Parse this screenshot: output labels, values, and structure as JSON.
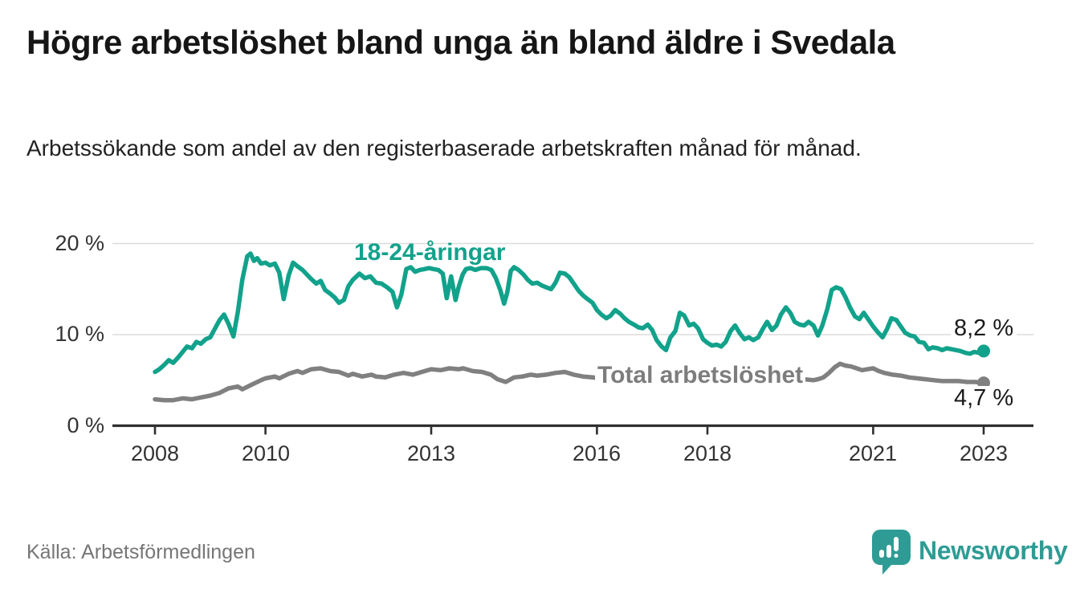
{
  "header": {
    "title": "Högre arbetslöshet bland unga än bland äldre i Svedala",
    "subtitle": "Arbetssökande som andel av den registerbaserade arbetskraften månad för månad."
  },
  "footer": {
    "source": "Källa: Arbetsförmedlingen",
    "brand": "Newsworthy"
  },
  "colors": {
    "young_line": "#12A28B",
    "total_line": "#808080",
    "grid": "#dcdcdc",
    "axis": "#2f2f2f",
    "brand_teal": "#2E9C94"
  },
  "chart_data": {
    "type": "line",
    "title": "Högre arbetslöshet bland unga än bland äldre i Svedala",
    "subtitle": "Arbetssökande som andel av den registerbaserade arbetskraften månad för månad.",
    "xlabel": "",
    "ylabel": "",
    "x_range": [
      2007.2,
      2023.9
    ],
    "ylim": [
      0,
      20
    ],
    "grid": "horizontal",
    "legend_position": "inline-labels",
    "x_ticks": [
      {
        "year": 2008,
        "label": "2008"
      },
      {
        "year": 2010,
        "label": "2010"
      },
      {
        "year": 2013,
        "label": "2013"
      },
      {
        "year": 2016,
        "label": "2016"
      },
      {
        "year": 2018,
        "label": "2018"
      },
      {
        "year": 2021,
        "label": "2021"
      },
      {
        "year": 2023,
        "label": "2023"
      }
    ],
    "y_ticks": [
      {
        "value": 0,
        "label": "0 %"
      },
      {
        "value": 10,
        "label": "10 %"
      },
      {
        "value": 20,
        "label": "20 %"
      }
    ],
    "series": [
      {
        "name": "18-24-åringar",
        "color": "#12A28B",
        "end_value": 8.2,
        "end_label": "8,2 %",
        "points": [
          [
            2008.0,
            5.9
          ],
          [
            2008.08,
            6.2
          ],
          [
            2008.17,
            6.7
          ],
          [
            2008.25,
            7.2
          ],
          [
            2008.33,
            6.9
          ],
          [
            2008.42,
            7.5
          ],
          [
            2008.5,
            8.1
          ],
          [
            2008.58,
            8.7
          ],
          [
            2008.67,
            8.5
          ],
          [
            2008.75,
            9.2
          ],
          [
            2008.83,
            9.0
          ],
          [
            2008.92,
            9.5
          ],
          [
            2009.0,
            9.7
          ],
          [
            2009.08,
            10.6
          ],
          [
            2009.17,
            11.6
          ],
          [
            2009.25,
            12.2
          ],
          [
            2009.33,
            11.2
          ],
          [
            2009.42,
            9.8
          ],
          [
            2009.5,
            12.5
          ],
          [
            2009.58,
            16.0
          ],
          [
            2009.67,
            18.6
          ],
          [
            2009.73,
            18.9
          ],
          [
            2009.79,
            18.1
          ],
          [
            2009.85,
            18.4
          ],
          [
            2009.92,
            17.8
          ],
          [
            2010.0,
            17.9
          ],
          [
            2010.08,
            17.6
          ],
          [
            2010.17,
            17.8
          ],
          [
            2010.25,
            16.8
          ],
          [
            2010.33,
            13.9
          ],
          [
            2010.42,
            16.5
          ],
          [
            2010.5,
            17.9
          ],
          [
            2010.58,
            17.5
          ],
          [
            2010.67,
            17.1
          ],
          [
            2010.75,
            16.6
          ],
          [
            2010.83,
            16.1
          ],
          [
            2010.92,
            15.6
          ],
          [
            2011.0,
            15.9
          ],
          [
            2011.08,
            14.9
          ],
          [
            2011.17,
            14.5
          ],
          [
            2011.25,
            14.1
          ],
          [
            2011.33,
            13.5
          ],
          [
            2011.42,
            13.8
          ],
          [
            2011.5,
            15.3
          ],
          [
            2011.58,
            16.0
          ],
          [
            2011.7,
            16.7
          ],
          [
            2011.8,
            16.2
          ],
          [
            2011.9,
            16.4
          ],
          [
            2012.0,
            15.7
          ],
          [
            2012.1,
            15.6
          ],
          [
            2012.2,
            15.2
          ],
          [
            2012.3,
            14.7
          ],
          [
            2012.38,
            13.0
          ],
          [
            2012.46,
            14.4
          ],
          [
            2012.55,
            17.2
          ],
          [
            2012.63,
            17.4
          ],
          [
            2012.71,
            16.9
          ],
          [
            2012.79,
            17.1
          ],
          [
            2012.88,
            17.2
          ],
          [
            2012.96,
            17.3
          ],
          [
            2013.04,
            17.2
          ],
          [
            2013.13,
            17.1
          ],
          [
            2013.21,
            16.7
          ],
          [
            2013.28,
            14.0
          ],
          [
            2013.36,
            16.4
          ],
          [
            2013.44,
            13.8
          ],
          [
            2013.5,
            15.3
          ],
          [
            2013.57,
            16.6
          ],
          [
            2013.63,
            17.2
          ],
          [
            2013.71,
            17.3
          ],
          [
            2013.8,
            17.1
          ],
          [
            2013.9,
            17.3
          ],
          [
            2014.0,
            17.3
          ],
          [
            2014.09,
            17.1
          ],
          [
            2014.17,
            16.2
          ],
          [
            2014.25,
            14.9
          ],
          [
            2014.32,
            13.4
          ],
          [
            2014.38,
            14.7
          ],
          [
            2014.44,
            17.0
          ],
          [
            2014.5,
            17.4
          ],
          [
            2014.58,
            17.1
          ],
          [
            2014.67,
            16.6
          ],
          [
            2014.75,
            16.0
          ],
          [
            2014.83,
            15.6
          ],
          [
            2014.92,
            15.7
          ],
          [
            2015.0,
            15.4
          ],
          [
            2015.08,
            15.2
          ],
          [
            2015.17,
            15.0
          ],
          [
            2015.25,
            15.7
          ],
          [
            2015.33,
            16.8
          ],
          [
            2015.42,
            16.7
          ],
          [
            2015.5,
            16.3
          ],
          [
            2015.58,
            15.6
          ],
          [
            2015.67,
            14.8
          ],
          [
            2015.75,
            14.3
          ],
          [
            2015.83,
            13.9
          ],
          [
            2015.92,
            13.5
          ],
          [
            2016.0,
            12.7
          ],
          [
            2016.08,
            12.2
          ],
          [
            2016.17,
            11.8
          ],
          [
            2016.25,
            12.1
          ],
          [
            2016.33,
            12.7
          ],
          [
            2016.42,
            12.3
          ],
          [
            2016.5,
            11.8
          ],
          [
            2016.58,
            11.4
          ],
          [
            2016.67,
            11.1
          ],
          [
            2016.75,
            10.8
          ],
          [
            2016.83,
            10.7
          ],
          [
            2016.92,
            11.1
          ],
          [
            2017.0,
            10.5
          ],
          [
            2017.08,
            9.4
          ],
          [
            2017.17,
            8.7
          ],
          [
            2017.25,
            8.3
          ],
          [
            2017.33,
            9.7
          ],
          [
            2017.42,
            10.4
          ],
          [
            2017.5,
            12.4
          ],
          [
            2017.58,
            12.1
          ],
          [
            2017.67,
            11.0
          ],
          [
            2017.75,
            11.2
          ],
          [
            2017.83,
            10.7
          ],
          [
            2017.92,
            9.5
          ],
          [
            2018.0,
            9.1
          ],
          [
            2018.08,
            8.8
          ],
          [
            2018.17,
            8.9
          ],
          [
            2018.25,
            8.7
          ],
          [
            2018.33,
            9.2
          ],
          [
            2018.42,
            10.4
          ],
          [
            2018.5,
            11.0
          ],
          [
            2018.58,
            10.2
          ],
          [
            2018.67,
            9.5
          ],
          [
            2018.75,
            9.7
          ],
          [
            2018.83,
            9.4
          ],
          [
            2018.92,
            9.7
          ],
          [
            2019.0,
            10.6
          ],
          [
            2019.08,
            11.4
          ],
          [
            2019.17,
            10.5
          ],
          [
            2019.25,
            11.0
          ],
          [
            2019.33,
            12.2
          ],
          [
            2019.42,
            13.0
          ],
          [
            2019.5,
            12.4
          ],
          [
            2019.58,
            11.4
          ],
          [
            2019.67,
            11.1
          ],
          [
            2019.75,
            11.0
          ],
          [
            2019.83,
            11.4
          ],
          [
            2019.92,
            11.0
          ],
          [
            2020.0,
            9.9
          ],
          [
            2020.08,
            11.0
          ],
          [
            2020.17,
            12.8
          ],
          [
            2020.25,
            14.9
          ],
          [
            2020.33,
            15.2
          ],
          [
            2020.42,
            15.0
          ],
          [
            2020.5,
            14.1
          ],
          [
            2020.58,
            13.0
          ],
          [
            2020.67,
            12.0
          ],
          [
            2020.75,
            11.7
          ],
          [
            2020.83,
            12.4
          ],
          [
            2020.92,
            11.6
          ],
          [
            2021.0,
            10.9
          ],
          [
            2021.08,
            10.3
          ],
          [
            2021.17,
            9.7
          ],
          [
            2021.25,
            10.6
          ],
          [
            2021.33,
            11.8
          ],
          [
            2021.42,
            11.6
          ],
          [
            2021.5,
            10.9
          ],
          [
            2021.58,
            10.2
          ],
          [
            2021.67,
            9.9
          ],
          [
            2021.75,
            9.8
          ],
          [
            2021.83,
            9.2
          ],
          [
            2021.92,
            9.1
          ],
          [
            2022.0,
            8.4
          ],
          [
            2022.08,
            8.6
          ],
          [
            2022.17,
            8.5
          ],
          [
            2022.25,
            8.3
          ],
          [
            2022.33,
            8.5
          ],
          [
            2022.42,
            8.4
          ],
          [
            2022.5,
            8.3
          ],
          [
            2022.58,
            8.2
          ],
          [
            2022.67,
            8.0
          ],
          [
            2022.75,
            7.9
          ],
          [
            2022.83,
            8.1
          ],
          [
            2022.92,
            8.0
          ],
          [
            2023.0,
            8.2
          ]
        ]
      },
      {
        "name": "Total arbetslöshet",
        "color": "#808080",
        "end_value": 4.7,
        "end_label": "4,7 %",
        "points": [
          [
            2008.0,
            2.9
          ],
          [
            2008.17,
            2.8
          ],
          [
            2008.33,
            2.8
          ],
          [
            2008.5,
            3.0
          ],
          [
            2008.67,
            2.9
          ],
          [
            2008.83,
            3.1
          ],
          [
            2009.0,
            3.3
          ],
          [
            2009.17,
            3.6
          ],
          [
            2009.33,
            4.1
          ],
          [
            2009.5,
            4.3
          ],
          [
            2009.58,
            4.0
          ],
          [
            2009.75,
            4.5
          ],
          [
            2009.92,
            5.0
          ],
          [
            2010.0,
            5.2
          ],
          [
            2010.17,
            5.4
          ],
          [
            2010.25,
            5.2
          ],
          [
            2010.42,
            5.7
          ],
          [
            2010.58,
            6.0
          ],
          [
            2010.67,
            5.8
          ],
          [
            2010.83,
            6.2
          ],
          [
            2011.0,
            6.3
          ],
          [
            2011.17,
            6.0
          ],
          [
            2011.33,
            5.9
          ],
          [
            2011.5,
            5.5
          ],
          [
            2011.58,
            5.7
          ],
          [
            2011.75,
            5.4
          ],
          [
            2011.92,
            5.6
          ],
          [
            2012.0,
            5.4
          ],
          [
            2012.17,
            5.3
          ],
          [
            2012.33,
            5.6
          ],
          [
            2012.5,
            5.8
          ],
          [
            2012.67,
            5.6
          ],
          [
            2012.83,
            5.9
          ],
          [
            2013.0,
            6.2
          ],
          [
            2013.17,
            6.1
          ],
          [
            2013.33,
            6.3
          ],
          [
            2013.5,
            6.2
          ],
          [
            2013.58,
            6.3
          ],
          [
            2013.75,
            6.0
          ],
          [
            2013.92,
            5.9
          ],
          [
            2014.08,
            5.6
          ],
          [
            2014.2,
            5.1
          ],
          [
            2014.35,
            4.8
          ],
          [
            2014.5,
            5.3
          ],
          [
            2014.65,
            5.4
          ],
          [
            2014.8,
            5.6
          ],
          [
            2014.92,
            5.5
          ],
          [
            2015.08,
            5.6
          ],
          [
            2015.25,
            5.8
          ],
          [
            2015.42,
            5.9
          ],
          [
            2015.58,
            5.6
          ],
          [
            2015.75,
            5.4
          ],
          [
            2015.92,
            5.3
          ],
          [
            2016.08,
            5.2
          ],
          [
            2016.25,
            5.3
          ],
          [
            2016.42,
            5.2
          ],
          [
            2016.58,
            5.0
          ],
          [
            2016.75,
            5.2
          ],
          [
            2016.92,
            5.1
          ],
          [
            2017.08,
            5.0
          ],
          [
            2017.25,
            5.1
          ],
          [
            2017.42,
            5.2
          ],
          [
            2017.58,
            5.1
          ],
          [
            2017.75,
            5.0
          ],
          [
            2017.92,
            4.9
          ],
          [
            2018.08,
            4.8
          ],
          [
            2018.25,
            4.9
          ],
          [
            2018.42,
            5.0
          ],
          [
            2018.58,
            4.9
          ],
          [
            2018.75,
            4.8
          ],
          [
            2018.92,
            4.9
          ],
          [
            2019.08,
            5.0
          ],
          [
            2019.25,
            5.1
          ],
          [
            2019.42,
            5.2
          ],
          [
            2019.58,
            5.1
          ],
          [
            2019.75,
            5.1
          ],
          [
            2019.92,
            5.0
          ],
          [
            2020.0,
            5.1
          ],
          [
            2020.1,
            5.3
          ],
          [
            2020.2,
            5.8
          ],
          [
            2020.3,
            6.4
          ],
          [
            2020.4,
            6.8
          ],
          [
            2020.5,
            6.6
          ],
          [
            2020.6,
            6.5
          ],
          [
            2020.7,
            6.3
          ],
          [
            2020.8,
            6.1
          ],
          [
            2020.9,
            6.2
          ],
          [
            2021.0,
            6.3
          ],
          [
            2021.1,
            6.0
          ],
          [
            2021.2,
            5.8
          ],
          [
            2021.35,
            5.6
          ],
          [
            2021.5,
            5.5
          ],
          [
            2021.65,
            5.3
          ],
          [
            2021.8,
            5.2
          ],
          [
            2021.95,
            5.1
          ],
          [
            2022.1,
            5.0
          ],
          [
            2022.25,
            4.9
          ],
          [
            2022.4,
            4.9
          ],
          [
            2022.55,
            4.9
          ],
          [
            2022.7,
            4.8
          ],
          [
            2022.85,
            4.8
          ],
          [
            2023.0,
            4.7
          ]
        ]
      }
    ]
  }
}
